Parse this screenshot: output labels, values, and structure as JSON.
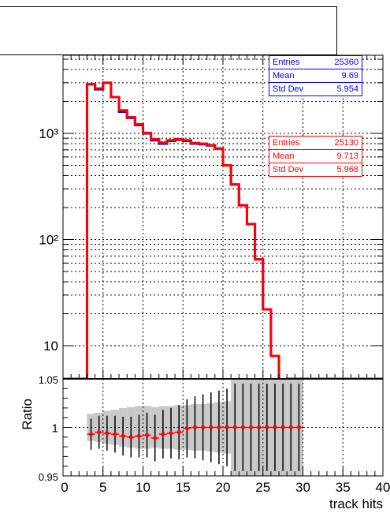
{
  "title": "",
  "chart_data": [
    {
      "type": "line",
      "panel": "main",
      "log_y": true,
      "grid": true,
      "xlim": [
        0,
        40
      ],
      "ytick_labels": [
        "10",
        "10²",
        "10³"
      ],
      "series": [
        {
          "color": "#0000ff",
          "x": [
            0,
            1,
            2,
            3,
            4,
            5,
            6,
            7,
            8,
            9,
            10,
            11,
            12,
            13,
            14,
            15,
            16,
            17,
            18,
            19,
            20,
            21,
            22,
            23,
            24,
            25,
            26,
            27,
            28,
            29,
            30,
            31,
            32,
            33,
            34,
            35,
            36,
            37,
            38,
            39
          ],
          "values": [
            0,
            0,
            0,
            2900,
            2600,
            3000,
            2200,
            1600,
            1400,
            1200,
            1000,
            860,
            800,
            850,
            870,
            850,
            800,
            790,
            770,
            720,
            500,
            330,
            210,
            140,
            65,
            22,
            8,
            4,
            0,
            0,
            0,
            0,
            0,
            0,
            0,
            0,
            0,
            0,
            0,
            0
          ]
        },
        {
          "color": "#ff0000",
          "x": [
            0,
            1,
            2,
            3,
            4,
            5,
            6,
            7,
            8,
            9,
            10,
            11,
            12,
            13,
            14,
            15,
            16,
            17,
            18,
            19,
            20,
            21,
            22,
            23,
            24,
            25,
            26,
            27,
            28,
            29,
            30,
            31,
            32,
            33,
            34,
            35,
            36,
            37,
            38,
            39
          ],
          "values": [
            0,
            0,
            0,
            2900,
            2650,
            3000,
            2200,
            1650,
            1420,
            1220,
            1010,
            880,
            820,
            860,
            880,
            860,
            810,
            800,
            770,
            720,
            500,
            330,
            210,
            140,
            65,
            22,
            8,
            4,
            0,
            0,
            0,
            0,
            0,
            0,
            0,
            0,
            0,
            0,
            0,
            0
          ]
        }
      ]
    },
    {
      "type": "scatter",
      "panel": "ratio",
      "xlabel": "track hits",
      "ylabel": "Ratio",
      "xlim": [
        0,
        40
      ],
      "ylim": [
        0.95,
        1.05
      ],
      "xtick_labels": [
        "0",
        "5",
        "10",
        "15",
        "20",
        "25",
        "30",
        "35",
        "40"
      ],
      "ytick_labels": [
        "0.95",
        "1",
        "1.05"
      ],
      "series": [
        {
          "color": "#ff0000",
          "x": [
            3.5,
            4.5,
            5.5,
            6.5,
            7.5,
            8.5,
            9.5,
            10.5,
            11.5,
            12.5,
            13.5,
            14.5,
            15.5,
            16.5,
            17.5,
            18.5,
            19.5,
            20.5,
            21.5,
            22.5,
            23.5,
            24.5,
            25.5,
            26.5,
            27.5,
            28.5,
            29.5
          ],
          "values": [
            0.993,
            0.995,
            0.994,
            0.993,
            0.991,
            0.99,
            0.991,
            0.992,
            0.989,
            0.993,
            0.994,
            0.995,
            0.999,
            1.0,
            1.0,
            1.0,
            1.0,
            1.0,
            1.0,
            1.0,
            1.0,
            1.0,
            1.0,
            1.0,
            1.0,
            1.0,
            1.0
          ],
          "err": [
            0.016,
            0.017,
            0.018,
            0.019,
            0.02,
            0.021,
            0.022,
            0.023,
            0.024,
            0.025,
            0.026,
            0.028,
            0.03,
            0.032,
            0.034,
            0.036,
            0.038,
            0.04,
            0.045,
            0.045,
            0.045,
            0.045,
            0.045,
            0.045,
            0.045,
            0.045,
            0.045
          ]
        }
      ],
      "band": {
        "color": "#c8c8c8",
        "x": [
          3,
          4,
          5,
          6,
          7,
          8,
          9,
          10,
          11,
          12,
          13,
          14,
          15,
          16,
          17,
          18,
          19,
          20,
          21,
          22,
          23,
          24,
          25,
          26,
          27,
          28,
          29
        ],
        "half_width": [
          0.014,
          0.015,
          0.017,
          0.018,
          0.02,
          0.021,
          0.022,
          0.022,
          0.021,
          0.022,
          0.022,
          0.023,
          0.023,
          0.024,
          0.024,
          0.025,
          0.026,
          0.027,
          0.05,
          0.05,
          0.05,
          0.05,
          0.05,
          0.05,
          0.05,
          0.05,
          0.05
        ]
      },
      "reference_line": 1
    }
  ],
  "stats_blue": {
    "color": "#0000ff",
    "rows": [
      {
        "label": "Entries",
        "value": "25360"
      },
      {
        "label": "Mean",
        "value": "9.69"
      },
      {
        "label": "Std Dev",
        "value": "5.954"
      }
    ]
  },
  "stats_red": {
    "color": "#ff0000",
    "rows": [
      {
        "label": "Entries",
        "value": "25130"
      },
      {
        "label": "Mean",
        "value": "9.713"
      },
      {
        "label": "Std Dev",
        "value": "5.968"
      }
    ]
  }
}
